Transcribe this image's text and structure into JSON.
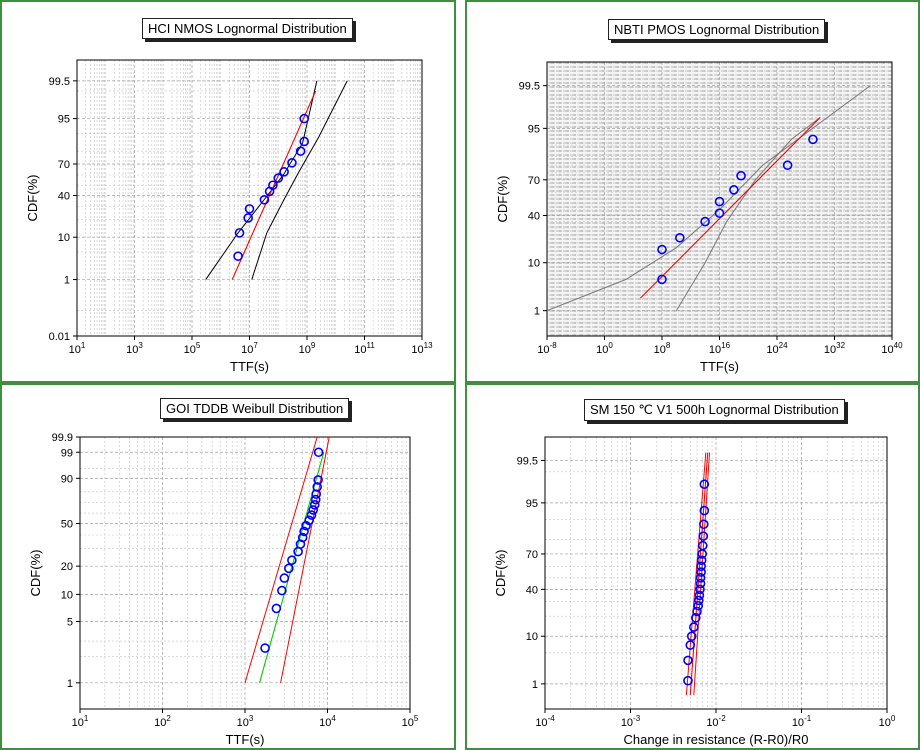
{
  "colors": {
    "border": "#3e8f3e",
    "fit": "#ff0000",
    "bound": "#000000",
    "bound_gray": "#777777",
    "green_fit": "#00cc00",
    "marker": "#0000ff"
  },
  "chart_data": [
    {
      "type": "scatter",
      "title": "HCI NMOS Lognormal Distribution",
      "xlabel": "TTF(s)",
      "ylabel": "CDF(%)",
      "xscale": "log",
      "yscale": "lognormal-probability",
      "xlim": [
        10.0,
        10000000000000.0
      ],
      "ylim": [
        0.01,
        99.9
      ],
      "xticks": [
        10.0,
        1000.0,
        100000.0,
        10000000.0,
        1000000000.0,
        100000000000.0,
        10000000000000.0
      ],
      "xtick_labels": [
        {
          "b": "10",
          "e": "1"
        },
        {
          "b": "10",
          "e": "3"
        },
        {
          "b": "10",
          "e": "5"
        },
        {
          "b": "10",
          "e": "7"
        },
        {
          "b": "10",
          "e": "9"
        },
        {
          "b": "10",
          "e": "11"
        },
        {
          "b": "10",
          "e": "13"
        }
      ],
      "yticks": [
        0.01,
        1,
        10,
        40,
        70,
        95,
        99.5
      ],
      "ytick_labels": [
        "0.01",
        "1",
        "10",
        "40",
        "70",
        "95",
        "99.5"
      ],
      "grid": true,
      "points": [
        [
          4000000.0,
          4
        ],
        [
          4500000.0,
          12
        ],
        [
          9000000.0,
          21
        ],
        [
          10000000.0,
          28
        ],
        [
          33000000.0,
          36
        ],
        [
          50000000.0,
          44
        ],
        [
          65000000.0,
          50
        ],
        [
          100000000.0,
          57
        ],
        [
          160000000.0,
          63
        ],
        [
          300000000.0,
          71
        ],
        [
          600000000.0,
          80
        ],
        [
          800000000.0,
          86
        ],
        [
          800000000.0,
          95
        ]
      ],
      "fit": [
        [
          2500000.0,
          1
        ],
        [
          2000000000.0,
          99
        ]
      ],
      "lower_bound": [
        [
          300000.0,
          1
        ],
        [
          4000000.0,
          12
        ],
        [
          30000000.0,
          35
        ],
        [
          150000000.0,
          60
        ],
        [
          700000000.0,
          85
        ],
        [
          2200000000.0,
          99.5
        ]
      ],
      "upper_bound": [
        [
          12000000.0,
          1
        ],
        [
          40000000.0,
          12
        ],
        [
          150000000.0,
          35
        ],
        [
          500000000.0,
          62
        ],
        [
          2500000000.0,
          88
        ],
        [
          25000000000.0,
          99.5
        ]
      ]
    },
    {
      "type": "scatter",
      "title": "NBTI PMOS Lognormal Distribution",
      "xlabel": "TTF(s)",
      "ylabel": "CDF(%)",
      "xscale": "log",
      "yscale": "lognormal-probability",
      "xlim": [
        1e-08,
        1e+40
      ],
      "ylim": [
        0.2,
        99.9
      ],
      "xticks": [
        1e-08,
        1.0,
        100000000.0,
        1e+16,
        1e+24,
        1e+32,
        1e+40
      ],
      "xtick_labels": [
        {
          "b": "10",
          "e": "-8"
        },
        {
          "b": "10",
          "e": "0"
        },
        {
          "b": "10",
          "e": "8"
        },
        {
          "b": "10",
          "e": "16"
        },
        {
          "b": "10",
          "e": "24"
        },
        {
          "b": "10",
          "e": "32"
        },
        {
          "b": "10",
          "e": "40"
        }
      ],
      "yticks": [
        1,
        10,
        40,
        70,
        95,
        99.5
      ],
      "ytick_labels": [
        "1",
        "10",
        "40",
        "70",
        "95",
        "99.5"
      ],
      "grid": true,
      "points": [
        [
          100000000.0,
          5
        ],
        [
          100000000.0,
          16
        ],
        [
          30000000000.0,
          23
        ],
        [
          100000000000000.0,
          35
        ],
        [
          1e+16,
          42
        ],
        [
          1e+16,
          52
        ],
        [
          1e+18,
          62
        ],
        [
          1e+19,
          73
        ],
        [
          3e+25,
          80
        ],
        [
          1e+29,
          92
        ]
      ],
      "fit": [
        [
          100000.0,
          2
        ],
        [
          1e+30,
          97
        ]
      ],
      "lower_bound": [
        [
          1e-08,
          1
        ],
        [
          1000.0,
          5
        ],
        [
          10000000000.0,
          17
        ],
        [
          1e+16,
          45
        ],
        [
          1e+22,
          80
        ],
        [
          1e+37,
          99.5
        ]
      ],
      "upper_bound": [
        [
          10000000000.0,
          1
        ],
        [
          100000000000000.0,
          10
        ],
        [
          1e+17,
          35
        ],
        [
          1e+21,
          70
        ],
        [
          1e+26,
          92
        ],
        [
          1e+30,
          97
        ]
      ]
    },
    {
      "type": "scatter",
      "title": "GOI TDDB Weibull Distribution",
      "xlabel": "TTF(s)",
      "ylabel": "CDF(%)",
      "xscale": "log",
      "yscale": "weibull-probability",
      "xlim": [
        10.0,
        100000.0
      ],
      "ylim": [
        0.5,
        99.9
      ],
      "xticks": [
        10.0,
        100.0,
        1000.0,
        10000.0,
        100000.0
      ],
      "xtick_labels": [
        {
          "b": "10",
          "e": "1"
        },
        {
          "b": "10",
          "e": "2"
        },
        {
          "b": "10",
          "e": "3"
        },
        {
          "b": "10",
          "e": "4"
        },
        {
          "b": "10",
          "e": "5"
        }
      ],
      "yticks": [
        1,
        5,
        10,
        20,
        50,
        90,
        99,
        99.9
      ],
      "ytick_labels": [
        "1",
        "5",
        "10",
        "20",
        "50",
        "90",
        "99",
        "99.9"
      ],
      "grid": true,
      "points": [
        [
          1750,
          2.5
        ],
        [
          2400,
          7
        ],
        [
          2800,
          11
        ],
        [
          3000,
          15
        ],
        [
          3400,
          19
        ],
        [
          3700,
          23
        ],
        [
          4400,
          28
        ],
        [
          4700,
          33
        ],
        [
          5000,
          38
        ],
        [
          5200,
          43
        ],
        [
          5500,
          48
        ],
        [
          6000,
          53
        ],
        [
          6400,
          58
        ],
        [
          6700,
          63
        ],
        [
          7000,
          68
        ],
        [
          7200,
          73
        ],
        [
          7300,
          78
        ],
        [
          7500,
          84
        ],
        [
          7700,
          89
        ],
        [
          7800,
          99
        ]
      ],
      "fit_green": [
        [
          1500,
          1
        ],
        [
          9000,
          99
        ]
      ],
      "lower_bound": [
        [
          1000,
          1
        ],
        [
          7500,
          99.9
        ]
      ],
      "upper_bound": [
        [
          2700,
          1
        ],
        [
          10500,
          99.9
        ]
      ]
    },
    {
      "type": "scatter",
      "title": "SM 150 ℃ V1 500h Lognormal Distribution",
      "xlabel": "Change in resistance (R-R0)/R0",
      "ylabel": "CDF(%)",
      "xscale": "log",
      "yscale": "lognormal-probability",
      "xlim": [
        0.0001,
        1.0
      ],
      "ylim": [
        0.2,
        99.9
      ],
      "xticks": [
        0.0001,
        0.001,
        0.01,
        0.1,
        1.0
      ],
      "xtick_labels": [
        {
          "b": "10",
          "e": "-4"
        },
        {
          "b": "10",
          "e": "-3"
        },
        {
          "b": "10",
          "e": "-2"
        },
        {
          "b": "10",
          "e": "-1"
        },
        {
          "b": "10",
          "e": "0"
        }
      ],
      "yticks": [
        1,
        10,
        40,
        70,
        95,
        99.5
      ],
      "ytick_labels": [
        "1",
        "10",
        "40",
        "70",
        "95",
        "99.5"
      ],
      "grid": true,
      "points": [
        [
          0.0047,
          1.2
        ],
        [
          0.0047,
          3.5
        ],
        [
          0.005,
          7
        ],
        [
          0.0052,
          10
        ],
        [
          0.0055,
          14
        ],
        [
          0.0058,
          19
        ],
        [
          0.006,
          23
        ],
        [
          0.0062,
          27
        ],
        [
          0.0063,
          31
        ],
        [
          0.0064,
          35
        ],
        [
          0.0065,
          40
        ],
        [
          0.0066,
          45
        ],
        [
          0.0066,
          50
        ],
        [
          0.0067,
          55
        ],
        [
          0.0067,
          60
        ],
        [
          0.0068,
          65
        ],
        [
          0.0069,
          70
        ],
        [
          0.007,
          76
        ],
        [
          0.0071,
          82
        ],
        [
          0.0072,
          88
        ],
        [
          0.0073,
          93
        ],
        [
          0.0073,
          98
        ]
      ],
      "fit": [
        [
          0.005,
          0.5
        ],
        [
          0.008,
          99.7
        ]
      ],
      "lower_bound": [
        [
          0.0045,
          0.5
        ],
        [
          0.0076,
          99.7
        ]
      ],
      "upper_bound": [
        [
          0.0055,
          0.5
        ],
        [
          0.0084,
          99.7
        ]
      ]
    }
  ]
}
